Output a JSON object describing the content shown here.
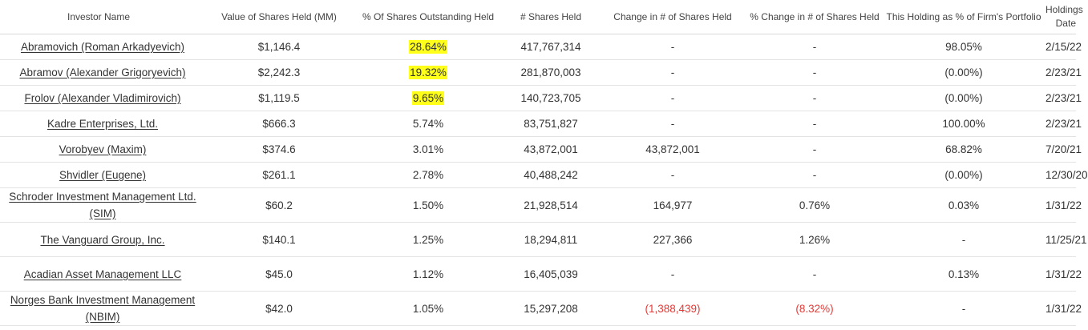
{
  "colors": {
    "highlight": "#ffff1a",
    "negative": "#e53935",
    "text": "#333333"
  },
  "headers": [
    "Investor Name",
    "Value of Shares Held (MM)",
    "% Of Shares Outstanding Held",
    "# Shares Held",
    "Change in # of Shares Held",
    "% Change in # of Shares Held",
    "This Holding as % of Firm's Portfolio",
    "Holdings Date"
  ],
  "rows": [
    {
      "name": "Abramovich (Roman Arkadyevich)",
      "value": "$1,146.4",
      "pct_out": "28.64%",
      "highlight": true,
      "shares": "417,767,314",
      "change": "-",
      "change_neg": false,
      "pct_change": "-",
      "pct_change_neg": false,
      "portfolio": "98.05%",
      "date": "2/15/22"
    },
    {
      "name": "Abramov (Alexander Grigoryevich)",
      "value": "$2,242.3",
      "pct_out": "19.32%",
      "highlight": true,
      "shares": "281,870,003",
      "change": "-",
      "change_neg": false,
      "pct_change": "-",
      "pct_change_neg": false,
      "portfolio": "(0.00%)",
      "date": "2/23/21"
    },
    {
      "name": "Frolov (Alexander Vladimirovich)",
      "value": "$1,119.5",
      "pct_out": "9.65%",
      "highlight": true,
      "shares": "140,723,705",
      "change": "-",
      "change_neg": false,
      "pct_change": "-",
      "pct_change_neg": false,
      "portfolio": "(0.00%)",
      "date": "2/23/21"
    },
    {
      "name": "Kadre Enterprises, Ltd.",
      "value": "$666.3",
      "pct_out": "5.74%",
      "highlight": false,
      "shares": "83,751,827",
      "change": "-",
      "change_neg": false,
      "pct_change": "-",
      "pct_change_neg": false,
      "portfolio": "100.00%",
      "date": "2/23/21"
    },
    {
      "name": "Vorobyev (Maxim)",
      "value": "$374.6",
      "pct_out": "3.01%",
      "highlight": false,
      "shares": "43,872,001",
      "change": "43,872,001",
      "change_neg": false,
      "pct_change": "-",
      "pct_change_neg": false,
      "portfolio": "68.82%",
      "date": "7/20/21"
    },
    {
      "name": "Shvidler (Eugene)",
      "value": "$261.1",
      "pct_out": "2.78%",
      "highlight": false,
      "shares": "40,488,242",
      "change": "-",
      "change_neg": false,
      "pct_change": "-",
      "pct_change_neg": false,
      "portfolio": "(0.00%)",
      "date": "12/30/20"
    },
    {
      "name": "Schroder Investment Management Ltd. (SIM)",
      "value": "$60.2",
      "pct_out": "1.50%",
      "highlight": false,
      "shares": "21,928,514",
      "change": "164,977",
      "change_neg": false,
      "pct_change": "0.76%",
      "pct_change_neg": false,
      "portfolio": "0.03%",
      "date": "1/31/22"
    },
    {
      "name": "The Vanguard Group, Inc.",
      "value": "$140.1",
      "pct_out": "1.25%",
      "highlight": false,
      "shares": "18,294,811",
      "change": "227,366",
      "change_neg": false,
      "pct_change": "1.26%",
      "pct_change_neg": false,
      "portfolio": "-",
      "date": "11/25/21"
    },
    {
      "name": "Acadian Asset Management LLC",
      "value": "$45.0",
      "pct_out": "1.12%",
      "highlight": false,
      "shares": "16,405,039",
      "change": "-",
      "change_neg": false,
      "pct_change": "-",
      "pct_change_neg": false,
      "portfolio": "0.13%",
      "date": "1/31/22"
    },
    {
      "name": "Norges Bank Investment Management (NBIM)",
      "value": "$42.0",
      "pct_out": "1.05%",
      "highlight": false,
      "shares": "15,297,208",
      "change": "(1,388,439)",
      "change_neg": true,
      "pct_change": "(8.32%)",
      "pct_change_neg": true,
      "portfolio": "-",
      "date": "1/31/22"
    }
  ]
}
